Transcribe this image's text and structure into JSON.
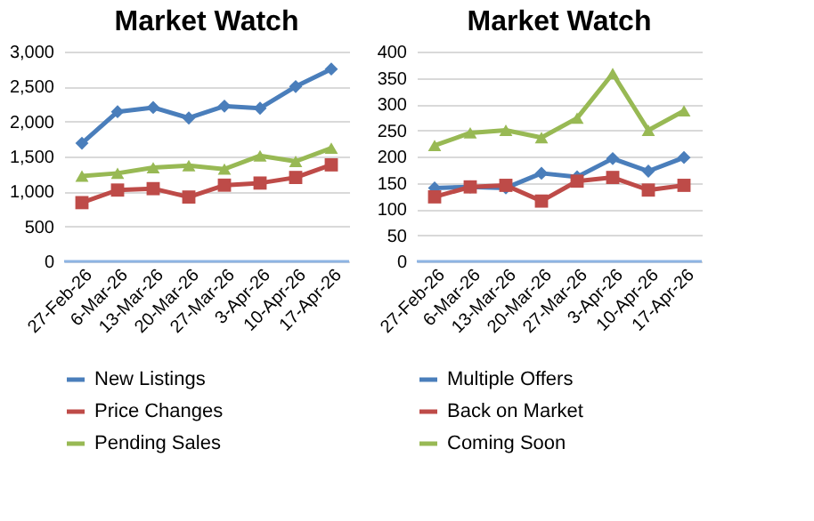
{
  "chart_data": [
    {
      "type": "line",
      "title": "Market Watch",
      "categories": [
        "27-Feb-26",
        "6-Mar-26",
        "13-Mar-26",
        "20-Mar-26",
        "27-Mar-26",
        "3-Apr-26",
        "10-Apr-26",
        "17-Apr-26"
      ],
      "series": [
        {
          "name": "New Listings",
          "color": "#4a7ebb",
          "marker": "diamond",
          "values": [
            1690,
            2140,
            2200,
            2050,
            2220,
            2190,
            2500,
            2750
          ]
        },
        {
          "name": "Price Changes",
          "color": "#be4b48",
          "marker": "square",
          "values": [
            840,
            1020,
            1040,
            920,
            1090,
            1120,
            1200,
            1380
          ]
        },
        {
          "name": "Pending Sales",
          "color": "#98b954",
          "marker": "triangle",
          "values": [
            1220,
            1260,
            1340,
            1370,
            1320,
            1510,
            1430,
            1620
          ]
        }
      ],
      "ylim": [
        0,
        3000
      ],
      "yticks": [
        0,
        500,
        {
          "value": 1000,
          "label": "1,000"
        },
        {
          "value": 1500,
          "label": "1,500"
        },
        {
          "value": 2000,
          "label": "2,000"
        },
        {
          "value": 2500,
          "label": "2,500"
        },
        {
          "value": 3000,
          "label": "3,000"
        }
      ],
      "grid": "y",
      "legend": "bottom"
    },
    {
      "type": "line",
      "title": "Market Watch",
      "categories": [
        "27-Feb-26",
        "6-Mar-26",
        "13-Mar-26",
        "20-Mar-26",
        "27-Mar-26",
        "3-Apr-26",
        "10-Apr-26",
        "17-Apr-26"
      ],
      "series": [
        {
          "name": "Multiple Offers",
          "color": "#4a7ebb",
          "marker": "diamond",
          "values": [
            140,
            142,
            140,
            168,
            161,
            196,
            172,
            198
          ]
        },
        {
          "name": "Back on Market",
          "color": "#be4b48",
          "marker": "square",
          "values": [
            123,
            142,
            145,
            115,
            153,
            160,
            136,
            145
          ]
        },
        {
          "name": "Coming Soon",
          "color": "#98b954",
          "marker": "triangle",
          "values": [
            221,
            245,
            250,
            236,
            273,
            358,
            250,
            287
          ]
        }
      ],
      "ylim": [
        0,
        400
      ],
      "yticks": [
        0,
        50,
        100,
        150,
        200,
        250,
        300,
        350,
        400
      ],
      "grid": "y",
      "legend": "bottom"
    }
  ]
}
